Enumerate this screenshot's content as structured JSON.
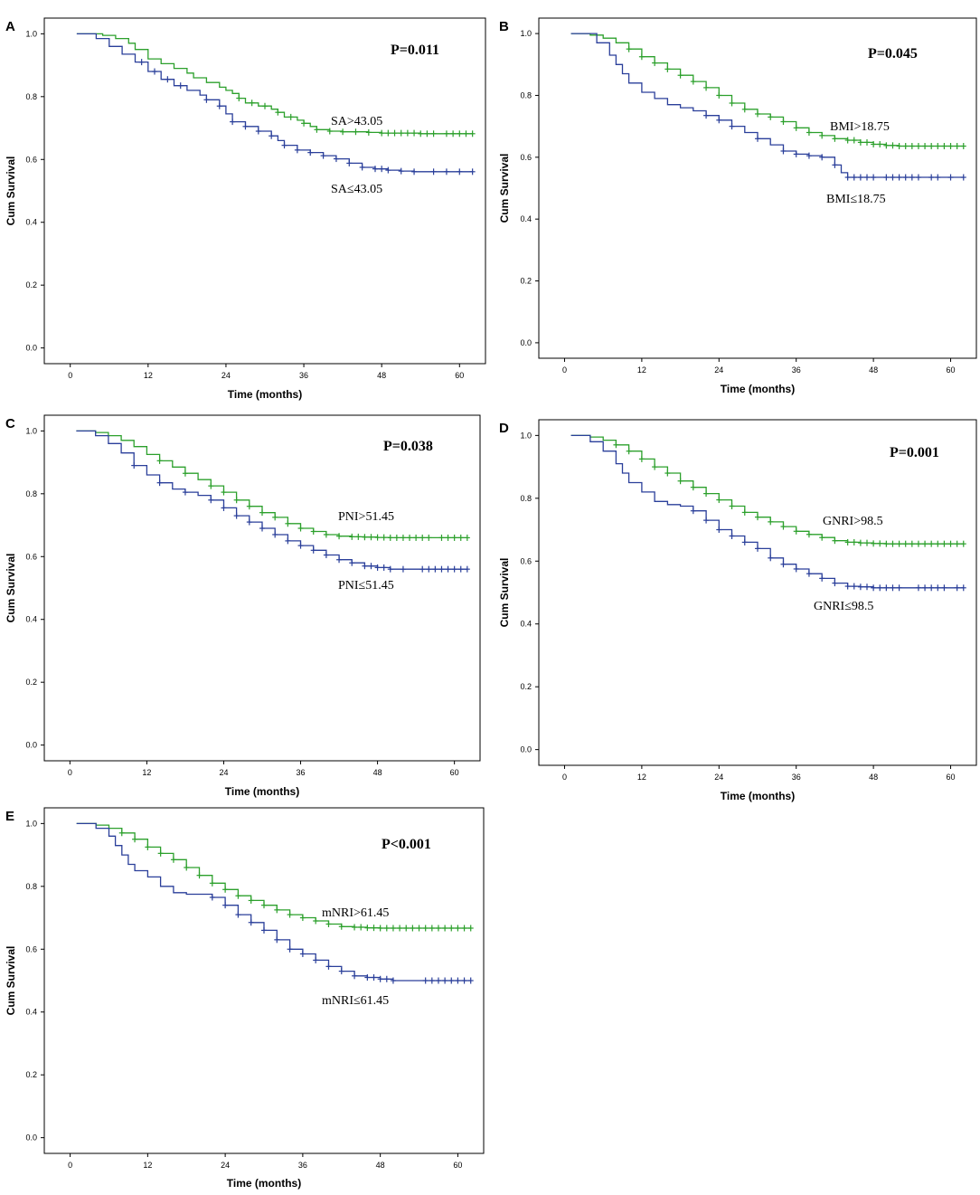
{
  "colors": {
    "high": "#2ca02c",
    "low": "#2a3f9a",
    "frame": "#000000"
  },
  "chart_data": [
    {
      "type": "line",
      "panel": "A",
      "xlabel": "Time (months)",
      "ylabel": "Cum Survival",
      "xticks": [
        0,
        12,
        24,
        36,
        48,
        60
      ],
      "yticks": [
        0.0,
        0.2,
        0.4,
        0.6,
        0.8,
        1.0
      ],
      "xlim": [
        -4,
        64
      ],
      "ylim": [
        -0.05,
        1.05
      ],
      "pvalue": "P=0.011",
      "series": [
        {
          "name": "SA>43.05",
          "color_key": "high",
          "x": [
            1,
            5,
            7,
            9,
            10,
            12,
            14,
            16,
            18,
            19,
            21,
            23,
            24,
            25,
            26,
            27,
            29,
            31,
            32,
            33,
            35,
            36,
            37,
            38,
            40,
            42,
            44,
            46,
            48,
            50,
            52,
            54,
            56,
            58,
            60,
            62
          ],
          "y": [
            1.0,
            0.995,
            0.985,
            0.97,
            0.95,
            0.92,
            0.905,
            0.89,
            0.875,
            0.86,
            0.845,
            0.83,
            0.82,
            0.81,
            0.795,
            0.78,
            0.77,
            0.76,
            0.75,
            0.735,
            0.725,
            0.715,
            0.705,
            0.695,
            0.69,
            0.688,
            0.688,
            0.686,
            0.684,
            0.684,
            0.684,
            0.682,
            0.682,
            0.682,
            0.682,
            0.682
          ],
          "censor_x": [
            26,
            28,
            30,
            32,
            34,
            36,
            38,
            40,
            42,
            44,
            46,
            48,
            49,
            50,
            51,
            52,
            53,
            54,
            55,
            56,
            58,
            59,
            60,
            61,
            62
          ]
        },
        {
          "name": "SA≤43.05",
          "color_key": "low",
          "x": [
            1,
            4,
            6,
            8,
            10,
            12,
            14,
            16,
            18,
            20,
            21,
            23,
            24,
            25,
            27,
            29,
            31,
            32,
            33,
            35,
            37,
            39,
            41,
            43,
            45,
            47,
            49,
            51,
            53,
            55,
            57,
            59,
            61,
            62
          ],
          "y": [
            1.0,
            0.985,
            0.96,
            0.935,
            0.91,
            0.88,
            0.855,
            0.835,
            0.82,
            0.805,
            0.79,
            0.77,
            0.745,
            0.72,
            0.705,
            0.69,
            0.675,
            0.66,
            0.645,
            0.63,
            0.622,
            0.612,
            0.602,
            0.588,
            0.575,
            0.57,
            0.566,
            0.563,
            0.561,
            0.561,
            0.561,
            0.561,
            0.561,
            0.561
          ],
          "censor_x": [
            11,
            13,
            15,
            17,
            21,
            23,
            25,
            27,
            29,
            31,
            33,
            35,
            37,
            39,
            41,
            43,
            45,
            47,
            48,
            49,
            51,
            53,
            56,
            58,
            60,
            62
          ]
        }
      ],
      "annotations": [
        "SA>43.05",
        "SA≤43.05"
      ]
    },
    {
      "type": "line",
      "panel": "B",
      "xlabel": "Time (months)",
      "ylabel": "Cum Survival",
      "xticks": [
        0,
        12,
        24,
        36,
        48,
        60
      ],
      "yticks": [
        0.0,
        0.2,
        0.4,
        0.6,
        0.8,
        1.0
      ],
      "xlim": [
        -4,
        64
      ],
      "ylim": [
        -0.05,
        1.05
      ],
      "pvalue": "P=0.045",
      "series": [
        {
          "name": "BMI>18.75",
          "color_key": "high",
          "x": [
            1,
            4,
            6,
            8,
            10,
            12,
            14,
            16,
            18,
            20,
            22,
            24,
            26,
            28,
            30,
            32,
            34,
            36,
            38,
            40,
            42,
            44,
            46,
            48,
            50,
            52,
            54,
            56,
            58,
            60,
            62
          ],
          "y": [
            1.0,
            0.995,
            0.985,
            0.97,
            0.95,
            0.925,
            0.905,
            0.885,
            0.865,
            0.845,
            0.825,
            0.8,
            0.775,
            0.755,
            0.74,
            0.73,
            0.715,
            0.695,
            0.68,
            0.67,
            0.66,
            0.655,
            0.648,
            0.642,
            0.638,
            0.636,
            0.636,
            0.636,
            0.636,
            0.636,
            0.636
          ],
          "censor_x": [
            10,
            12,
            14,
            16,
            18,
            20,
            22,
            24,
            26,
            28,
            30,
            32,
            34,
            36,
            38,
            40,
            42,
            44,
            45,
            46,
            47,
            48,
            49,
            50,
            51,
            52,
            53,
            54,
            55,
            56,
            57,
            58,
            59,
            60,
            61,
            62
          ]
        },
        {
          "name": "BMI≤18.75",
          "color_key": "low",
          "x": [
            1,
            5,
            7,
            8,
            9,
            10,
            12,
            14,
            16,
            18,
            20,
            22,
            24,
            26,
            28,
            30,
            32,
            34,
            36,
            38,
            40,
            42,
            43,
            44,
            62
          ],
          "y": [
            1.0,
            0.97,
            0.93,
            0.9,
            0.87,
            0.84,
            0.81,
            0.79,
            0.77,
            0.76,
            0.75,
            0.735,
            0.72,
            0.7,
            0.68,
            0.66,
            0.64,
            0.62,
            0.61,
            0.605,
            0.6,
            0.575,
            0.55,
            0.535,
            0.535
          ],
          "censor_x": [
            22,
            24,
            26,
            30,
            34,
            36,
            38,
            40,
            42,
            44,
            45,
            46,
            47,
            48,
            50,
            51,
            52,
            53,
            54,
            55,
            57,
            58,
            60,
            62
          ]
        }
      ],
      "annotations": [
        "BMI>18.75",
        "BMI≤18.75"
      ]
    },
    {
      "type": "line",
      "panel": "C",
      "xlabel": "Time (months)",
      "ylabel": "Cum Survival",
      "xticks": [
        0,
        12,
        24,
        36,
        48,
        60
      ],
      "yticks": [
        0.0,
        0.2,
        0.4,
        0.6,
        0.8,
        1.0
      ],
      "xlim": [
        -4,
        64
      ],
      "ylim": [
        -0.05,
        1.05
      ],
      "pvalue": "P=0.038",
      "series": [
        {
          "name": "PNI>51.45",
          "color_key": "high",
          "x": [
            1,
            4,
            6,
            8,
            10,
            12,
            14,
            16,
            18,
            20,
            22,
            24,
            26,
            28,
            30,
            32,
            34,
            36,
            38,
            40,
            42,
            44,
            46,
            48,
            50,
            52,
            54,
            56,
            58,
            60,
            62
          ],
          "y": [
            1.0,
            0.995,
            0.985,
            0.97,
            0.95,
            0.925,
            0.905,
            0.885,
            0.865,
            0.845,
            0.825,
            0.805,
            0.78,
            0.76,
            0.74,
            0.725,
            0.705,
            0.69,
            0.68,
            0.67,
            0.665,
            0.663,
            0.662,
            0.661,
            0.66,
            0.66,
            0.66,
            0.66,
            0.66,
            0.66,
            0.66
          ],
          "censor_x": [
            14,
            18,
            22,
            24,
            26,
            28,
            30,
            32,
            34,
            36,
            38,
            40,
            42,
            44,
            45,
            46,
            47,
            48,
            49,
            50,
            51,
            52,
            53,
            54,
            55,
            56,
            58,
            59,
            60,
            61,
            62
          ]
        },
        {
          "name": "PNI≤51.45",
          "color_key": "low",
          "x": [
            1,
            4,
            6,
            8,
            10,
            12,
            14,
            16,
            18,
            20,
            22,
            24,
            26,
            28,
            30,
            32,
            34,
            36,
            38,
            40,
            42,
            44,
            46,
            48,
            50,
            62
          ],
          "y": [
            1.0,
            0.985,
            0.96,
            0.93,
            0.89,
            0.86,
            0.835,
            0.815,
            0.805,
            0.795,
            0.78,
            0.755,
            0.73,
            0.71,
            0.69,
            0.67,
            0.65,
            0.635,
            0.62,
            0.605,
            0.59,
            0.58,
            0.57,
            0.565,
            0.56,
            0.56
          ],
          "censor_x": [
            10,
            14,
            18,
            22,
            24,
            26,
            28,
            30,
            32,
            34,
            36,
            38,
            40,
            42,
            44,
            46,
            47,
            48,
            49,
            50,
            52,
            55,
            56,
            57,
            58,
            59,
            60,
            61,
            62
          ]
        }
      ],
      "annotations": [
        "PNI>51.45",
        "PNI≤51.45"
      ]
    },
    {
      "type": "line",
      "panel": "D",
      "xlabel": "Time (months)",
      "ylabel": "Cum Survival",
      "xticks": [
        0,
        12,
        24,
        36,
        48,
        60
      ],
      "yticks": [
        0.0,
        0.2,
        0.4,
        0.6,
        0.8,
        1.0
      ],
      "xlim": [
        -4,
        64
      ],
      "ylim": [
        -0.05,
        1.05
      ],
      "pvalue": "P=0.001",
      "series": [
        {
          "name": "GNRI>98.5",
          "color_key": "high",
          "x": [
            1,
            4,
            6,
            8,
            10,
            12,
            14,
            16,
            18,
            20,
            22,
            24,
            26,
            28,
            30,
            32,
            34,
            36,
            38,
            40,
            42,
            44,
            46,
            48,
            50,
            52,
            54,
            56,
            58,
            60,
            62
          ],
          "y": [
            1.0,
            0.995,
            0.985,
            0.97,
            0.95,
            0.925,
            0.9,
            0.88,
            0.855,
            0.835,
            0.815,
            0.795,
            0.775,
            0.755,
            0.74,
            0.725,
            0.71,
            0.695,
            0.685,
            0.675,
            0.665,
            0.66,
            0.658,
            0.656,
            0.655,
            0.655,
            0.655,
            0.655,
            0.655,
            0.655,
            0.655
          ],
          "censor_x": [
            8,
            10,
            12,
            14,
            16,
            18,
            20,
            22,
            24,
            26,
            28,
            30,
            32,
            34,
            36,
            38,
            40,
            42,
            44,
            45,
            46,
            47,
            48,
            49,
            50,
            51,
            52,
            53,
            54,
            55,
            56,
            57,
            58,
            59,
            60,
            61,
            62
          ]
        },
        {
          "name": "GNRI≤98.5",
          "color_key": "low",
          "x": [
            1,
            4,
            6,
            8,
            9,
            10,
            12,
            14,
            16,
            18,
            20,
            22,
            24,
            26,
            28,
            30,
            32,
            34,
            36,
            38,
            40,
            42,
            44,
            46,
            48,
            50,
            52,
            62
          ],
          "y": [
            1.0,
            0.98,
            0.95,
            0.91,
            0.88,
            0.85,
            0.82,
            0.79,
            0.78,
            0.775,
            0.76,
            0.73,
            0.7,
            0.68,
            0.66,
            0.64,
            0.61,
            0.59,
            0.575,
            0.56,
            0.545,
            0.53,
            0.52,
            0.518,
            0.515,
            0.515,
            0.515,
            0.515
          ],
          "censor_x": [
            20,
            22,
            24,
            26,
            28,
            30,
            32,
            34,
            36,
            38,
            40,
            42,
            44,
            45,
            46,
            47,
            48,
            49,
            50,
            51,
            52,
            55,
            56,
            57,
            58,
            59,
            61,
            62
          ]
        }
      ],
      "annotations": [
        "GNRI>98.5",
        "GNRI≤98.5"
      ]
    },
    {
      "type": "line",
      "panel": "E",
      "xlabel": "Time (months)",
      "ylabel": "Cum Survival",
      "xticks": [
        0,
        12,
        24,
        36,
        48,
        60
      ],
      "yticks": [
        0.0,
        0.2,
        0.4,
        0.6,
        0.8,
        1.0
      ],
      "xlim": [
        -4,
        64
      ],
      "ylim": [
        -0.05,
        1.05
      ],
      "pvalue": "P<0.001",
      "series": [
        {
          "name": "mNRI>61.45",
          "color_key": "high",
          "x": [
            1,
            4,
            6,
            8,
            10,
            12,
            14,
            16,
            18,
            20,
            22,
            24,
            26,
            28,
            30,
            32,
            34,
            36,
            38,
            40,
            42,
            44,
            46,
            48,
            50,
            52,
            54,
            56,
            58,
            60,
            62
          ],
          "y": [
            1.0,
            0.995,
            0.985,
            0.97,
            0.95,
            0.925,
            0.905,
            0.885,
            0.86,
            0.835,
            0.81,
            0.79,
            0.77,
            0.755,
            0.74,
            0.725,
            0.71,
            0.7,
            0.69,
            0.68,
            0.672,
            0.67,
            0.668,
            0.667,
            0.667,
            0.667,
            0.667,
            0.667,
            0.667,
            0.667,
            0.667
          ],
          "censor_x": [
            8,
            10,
            12,
            14,
            16,
            18,
            20,
            22,
            24,
            26,
            28,
            30,
            32,
            34,
            36,
            38,
            40,
            42,
            44,
            45,
            46,
            47,
            48,
            49,
            50,
            51,
            52,
            53,
            54,
            55,
            56,
            57,
            58,
            59,
            60,
            61,
            62
          ]
        },
        {
          "name": "mNRI≤61.45",
          "color_key": "low",
          "x": [
            1,
            4,
            6,
            7,
            8,
            9,
            10,
            12,
            14,
            16,
            18,
            20,
            22,
            24,
            26,
            28,
            30,
            32,
            34,
            36,
            38,
            40,
            42,
            44,
            46,
            48,
            50,
            62
          ],
          "y": [
            1.0,
            0.985,
            0.96,
            0.93,
            0.9,
            0.87,
            0.85,
            0.83,
            0.8,
            0.78,
            0.775,
            0.775,
            0.765,
            0.74,
            0.71,
            0.685,
            0.66,
            0.63,
            0.6,
            0.585,
            0.565,
            0.545,
            0.53,
            0.515,
            0.51,
            0.505,
            0.5,
            0.5
          ],
          "censor_x": [
            22,
            24,
            26,
            28,
            30,
            32,
            34,
            36,
            38,
            40,
            42,
            44,
            46,
            47,
            48,
            49,
            50,
            55,
            56,
            57,
            58,
            59,
            60,
            61,
            62
          ]
        }
      ],
      "annotations": [
        "mNRI>61.45",
        "mNRI≤61.45"
      ]
    }
  ]
}
